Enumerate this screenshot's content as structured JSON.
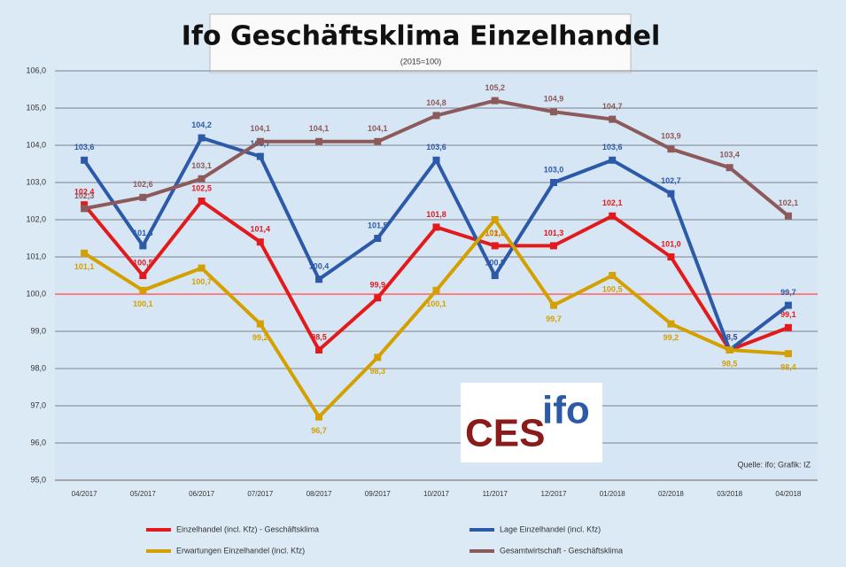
{
  "chart_data": {
    "type": "line",
    "title": "Ifo Geschäftsklima Einzelhandel",
    "subtitle": "(2015=100)",
    "source": "Quelle: ifo; Grafik: IZ",
    "logo": {
      "first": "CES",
      "second": "ifo"
    },
    "categories": [
      "04/2017",
      "05/2017",
      "06/2017",
      "07/2017",
      "08/2017",
      "09/2017",
      "10/2017",
      "11/2017",
      "12/2017",
      "01/2018",
      "02/2018",
      "03/2018",
      "04/2018"
    ],
    "ylim": [
      95,
      106
    ],
    "yticks": [
      {
        "value": 95,
        "label": "95,0"
      },
      {
        "value": 96,
        "label": "96,0"
      },
      {
        "value": 97,
        "label": "97,0"
      },
      {
        "value": 98,
        "label": "98,0"
      },
      {
        "value": 99,
        "label": "99,0"
      },
      {
        "value": 100,
        "label": "100,0"
      },
      {
        "value": 101,
        "label": "101,0"
      },
      {
        "value": 102,
        "label": "102,0"
      },
      {
        "value": 103,
        "label": "103,0"
      },
      {
        "value": 104,
        "label": "104,0"
      },
      {
        "value": 105,
        "label": "105,0"
      },
      {
        "value": 106,
        "label": "106,0"
      }
    ],
    "grid": true,
    "reference_line": {
      "value": 100,
      "color": "#ff8080"
    },
    "series": [
      {
        "name": "Einzelhandel (incl. Kfz) - Geschäftsklima",
        "color": "#e31a1c",
        "values": [
          102.4,
          100.5,
          102.5,
          101.4,
          98.5,
          99.9,
          101.8,
          101.3,
          101.3,
          102.1,
          101.0,
          98.5,
          99.1
        ],
        "value_labels": [
          "102,4",
          "100,5",
          "102,5",
          "101,4",
          "98,5",
          "99,9",
          "101,8",
          "101,3",
          "101,3",
          "102,1",
          "101,0",
          "98,5",
          "99,1"
        ]
      },
      {
        "name": "Lage Einzelhandel (incl. Kfz)",
        "color": "#2c5aa8",
        "values": [
          103.6,
          101.3,
          104.2,
          103.7,
          100.4,
          101.5,
          103.6,
          100.5,
          103.0,
          103.6,
          102.7,
          98.5,
          99.7
        ],
        "value_labels": [
          "103,6",
          "101,3",
          "104,2",
          "103,7",
          "100,4",
          "101,5",
          "103,6",
          "100,5",
          "103,0",
          "103,6",
          "102,7",
          "98,5",
          "99,7"
        ]
      },
      {
        "name": "Erwartungen Einzelhandel (incl. Kfz)",
        "color": "#d4a000",
        "values": [
          101.1,
          100.1,
          100.7,
          99.2,
          96.7,
          98.3,
          100.1,
          102.0,
          99.7,
          100.5,
          99.2,
          98.5,
          98.4
        ],
        "value_labels": [
          "101,1",
          "100,1",
          "100,7",
          "99,2",
          "96,7",
          "98,3",
          "100,1",
          "102,0",
          "99,7",
          "100,5",
          "99,2",
          "98,5",
          "98,4"
        ]
      },
      {
        "name": "Gesamtwirtschaft - Geschäftsklima",
        "color": "#8c5a5a",
        "values": [
          102.3,
          102.6,
          103.1,
          104.1,
          104.1,
          104.1,
          104.8,
          105.2,
          104.9,
          104.7,
          103.9,
          103.4,
          102.1
        ],
        "value_labels": [
          "102,3",
          "102,6",
          "103,1",
          "104,1",
          "104,1",
          "104,1",
          "104,8",
          "105,2",
          "104,9",
          "104,7",
          "103,9",
          "103,4",
          "102,1"
        ]
      }
    ]
  }
}
